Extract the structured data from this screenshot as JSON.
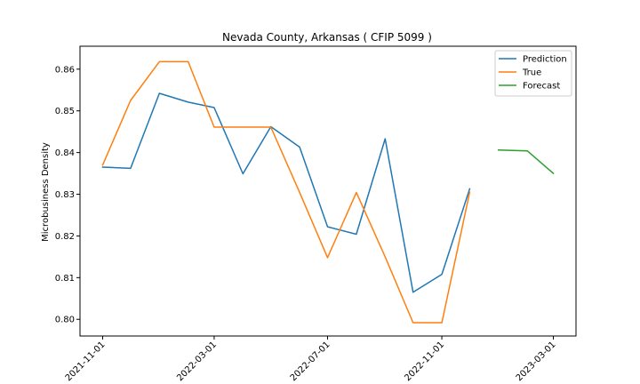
{
  "chart_data": {
    "type": "line",
    "title": "Nevada County, Arkansas ( CFIP 5099 )",
    "xlabel": "",
    "ylabel": "Microbusiness Density",
    "x_ticks": [
      "2021-11-01",
      "2022-03-01",
      "2022-07-01",
      "2022-11-01",
      "2023-03-01"
    ],
    "y_ticks": [
      "0.80",
      "0.81",
      "0.82",
      "0.83",
      "0.84",
      "0.85",
      "0.86"
    ],
    "ylim": [
      0.796,
      0.8655
    ],
    "grid": false,
    "legend_position": "top-right",
    "series": [
      {
        "name": "Prediction",
        "color": "#1f77b4",
        "x": [
          "2021-11-01",
          "2021-12-01",
          "2022-01-01",
          "2022-02-01",
          "2022-03-01",
          "2022-04-01",
          "2022-05-01",
          "2022-06-01",
          "2022-07-01",
          "2022-08-01",
          "2022-09-01",
          "2022-10-01",
          "2022-11-01",
          "2022-12-01"
        ],
        "y": [
          0.8365,
          0.8362,
          0.8542,
          0.8521,
          0.8508,
          0.8349,
          0.8462,
          0.8413,
          0.8222,
          0.8204,
          0.8433,
          0.8065,
          0.8108,
          0.8313
        ]
      },
      {
        "name": "True",
        "color": "#ff7f0e",
        "x": [
          "2021-11-01",
          "2021-12-01",
          "2022-01-01",
          "2022-02-01",
          "2022-03-01",
          "2022-04-01",
          "2022-05-01",
          "2022-06-01",
          "2022-07-01",
          "2022-08-01",
          "2022-09-01",
          "2022-10-01",
          "2022-11-01",
          "2022-12-01"
        ],
        "y": [
          0.837,
          0.8525,
          0.8618,
          0.8618,
          0.8461,
          0.8461,
          0.8461,
          0.8304,
          0.8148,
          0.8304,
          0.815,
          0.7992,
          0.7992,
          0.8305
        ]
      },
      {
        "name": "Forecast",
        "color": "#2ca02c",
        "x": [
          "2023-01-01",
          "2023-02-01",
          "2023-03-01"
        ],
        "y": [
          0.8406,
          0.8404,
          0.835
        ]
      }
    ]
  }
}
